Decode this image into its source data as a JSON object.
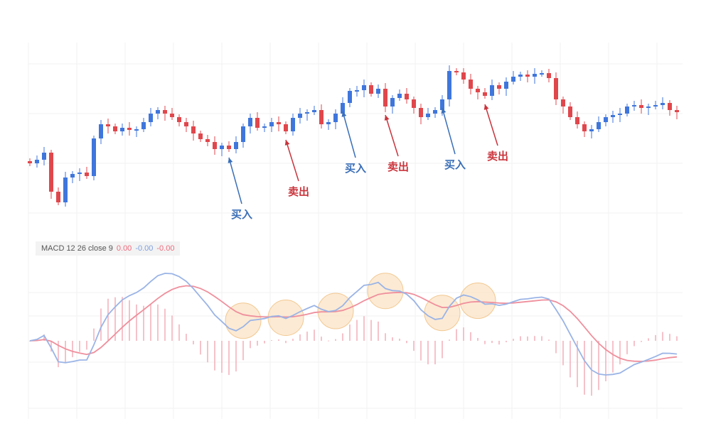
{
  "chart_data": [
    {
      "type": "candlestick",
      "title": "",
      "xlabel": "",
      "ylabel": "",
      "grid": true,
      "colors": {
        "up": "#3f76dc",
        "down": "#e0474c"
      },
      "closes": [
        100,
        105,
        115,
        60,
        45,
        80,
        85,
        87,
        82,
        135,
        155,
        152,
        145,
        150,
        147,
        148,
        158,
        170,
        175,
        170,
        165,
        158,
        152,
        142,
        134,
        130,
        120,
        125,
        120,
        130,
        152,
        164,
        150,
        152,
        158,
        155,
        145,
        164,
        170,
        172,
        175,
        155,
        158,
        170,
        185,
        202,
        203,
        210,
        198,
        205,
        180,
        192,
        198,
        190,
        178,
        165,
        170,
        175,
        190,
        230,
        228,
        218,
        205,
        200,
        195,
        210,
        205,
        215,
        222,
        225,
        222,
        226,
        227,
        220,
        190,
        180,
        165,
        155,
        145,
        148,
        158,
        165,
        168,
        170,
        180,
        182,
        178,
        180,
        182,
        185,
        175,
        172
      ],
      "annotations": [
        {
          "label": "买入",
          "candle": 28,
          "side": "buy"
        },
        {
          "label": "卖出",
          "candle": 36,
          "side": "sell"
        },
        {
          "label": "买入",
          "candle": 44,
          "side": "buy"
        },
        {
          "label": "卖出",
          "candle": 50,
          "side": "sell"
        },
        {
          "label": "买入",
          "candle": 58,
          "side": "buy"
        },
        {
          "label": "卖出",
          "candle": 64,
          "side": "sell"
        }
      ],
      "annotation_colors": {
        "buy": "#3a6fb8",
        "sell": "#c9343c"
      }
    },
    {
      "type": "line",
      "indicator": "MACD",
      "legend": {
        "name": "MACD 12 26 close 9",
        "hist": "0.00",
        "macd": "-0.00",
        "signal": "-0.00"
      },
      "params": {
        "fast": 12,
        "slow": 26,
        "signal": 9
      },
      "colors": {
        "macd": "#9ab4e6",
        "signal": "#ef8f9c",
        "hist": "#f2a9b3",
        "highlight_fill": "#fbe3c6",
        "highlight_stroke": "#f2c891"
      },
      "highlight_candles": [
        30,
        36,
        43,
        50,
        58,
        63
      ]
    }
  ]
}
